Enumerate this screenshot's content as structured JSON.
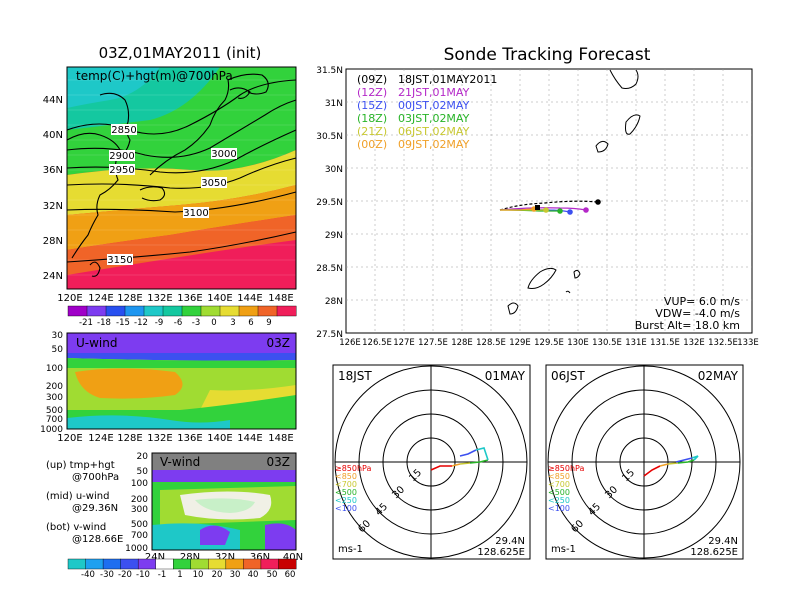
{
  "left": {
    "title": "03Z,01MAY2011 (init)",
    "map_label": "temp(C)+hgt(m)@700hPa",
    "lat_ticks": [
      "44N",
      "40N",
      "36N",
      "32N",
      "28N",
      "24N"
    ],
    "lon_ticks": [
      "120E",
      "124E",
      "128E",
      "132E",
      "136E",
      "140E",
      "144E",
      "148E"
    ],
    "contours": [
      "2850",
      "2900",
      "2950",
      "3000",
      "3050",
      "3100",
      "3150"
    ],
    "temp_colorbar": [
      "-21",
      "-18",
      "-15",
      "-12",
      "-9",
      "-6",
      "-3",
      "0",
      "3",
      "6",
      "9"
    ],
    "temp_colors": [
      "#a000c8",
      "#7d3cf0",
      "#2850f0",
      "#1e96f0",
      "#1ec8c8",
      "#14c8a0",
      "#32d23c",
      "#a0dc32",
      "#e6dc32",
      "#f0a014",
      "#f06428",
      "#f01e5a"
    ]
  },
  "uwind": {
    "label": "U-wind",
    "time": "03Z",
    "p_ticks": [
      "30",
      "50",
      "100",
      "200",
      "300",
      "500",
      "700",
      "1000"
    ],
    "lon_ticks": [
      "120E",
      "124E",
      "128E",
      "132E",
      "136E",
      "140E",
      "144E",
      "148E"
    ]
  },
  "vwind": {
    "label": "V-wind",
    "time": "03Z",
    "p_ticks": [
      "20",
      "50",
      "100",
      "200",
      "300",
      "500",
      "700",
      "1000"
    ],
    "lat_ticks": [
      "24N",
      "28N",
      "32N",
      "36N",
      "40N"
    ]
  },
  "legend_notes": [
    {
      "line1": "(up) tmp+hgt",
      "line2": "@700hPa"
    },
    {
      "line1": "(mid) u-wind",
      "line2": "@29.36N"
    },
    {
      "line1": "(bot) v-wind",
      "line2": "@128.66E"
    }
  ],
  "wind_colorbar": [
    "-40",
    "-30",
    "-20",
    "-10",
    "-1",
    "1",
    "10",
    "20",
    "30",
    "40",
    "50",
    "60"
  ],
  "wind_colors": [
    "#1ec8c8",
    "#1ea0f0",
    "#1e6ef0",
    "#3c50f0",
    "#7d3cf0",
    "#ffffff",
    "#32d23c",
    "#a0dc32",
    "#e6dc32",
    "#f0a014",
    "#f06428",
    "#f01e5a",
    "#c80000"
  ],
  "tracking": {
    "title": "Sonde Tracking Forecast",
    "lat_ticks": [
      "31.5N",
      "31N",
      "30.5N",
      "30N",
      "29.5N",
      "29N",
      "28.5N",
      "28N",
      "27.5N"
    ],
    "lon_ticks": [
      "126E",
      "126.5E",
      "127E",
      "127.5E",
      "128E",
      "128.5E",
      "129E",
      "129.5E",
      "130E",
      "130.5E",
      "131E",
      "131.5E",
      "132E",
      "132.5E",
      "133E"
    ],
    "launches": [
      {
        "code": "(09Z)",
        "time": "18JST,01MAY2011",
        "color": "#000000"
      },
      {
        "code": "(12Z)",
        "time": "21JST,01MAY",
        "color": "#b428c8"
      },
      {
        "code": "(15Z)",
        "time": "00JST,02MAY",
        "color": "#3c50f0"
      },
      {
        "code": "(18Z)",
        "time": "03JST,02MAY",
        "color": "#28b428"
      },
      {
        "code": "(21Z)",
        "time": "06JST,02MAY",
        "color": "#c8c832"
      },
      {
        "code": "(00Z)",
        "time": "09JST,02MAY",
        "color": "#f0a028"
      }
    ],
    "vup": "VUP= 6.0 m/s",
    "vdw": "VDW= -4.0 m/s",
    "burst": "Burst Alt= 18.0 km"
  },
  "hodographs": [
    {
      "left_label": "18JST",
      "right_label": "01MAY",
      "rings": [
        "15",
        "30",
        "45",
        "60"
      ],
      "lat": "29.4N",
      "lon": "128.625E",
      "unit": "ms-1"
    },
    {
      "left_label": "06JST",
      "right_label": "02MAY",
      "rings": [
        "15",
        "30",
        "45",
        "60"
      ],
      "lat": "29.4N",
      "lon": "128.625E",
      "unit": "ms-1"
    }
  ],
  "hodo_legend": [
    {
      "text": "≥850hPa",
      "color": "#e60000"
    },
    {
      "text": "<850",
      "color": "#f0a028"
    },
    {
      "text": "<700",
      "color": "#c8c832"
    },
    {
      "text": "<500",
      "color": "#28b428"
    },
    {
      "text": "<250",
      "color": "#1ec8c8"
    },
    {
      "text": "<100",
      "color": "#3c50f0"
    }
  ]
}
